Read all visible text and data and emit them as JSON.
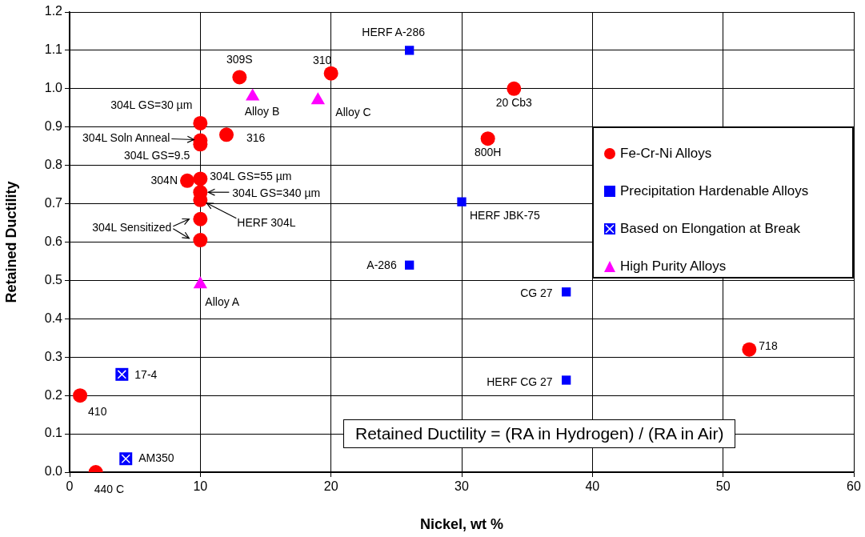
{
  "chart_data": {
    "type": "scatter",
    "xlabel": "Nickel, wt %",
    "ylabel": "Retained Ductility",
    "xlim": [
      0,
      60
    ],
    "xticks": [
      0,
      10,
      20,
      30,
      40,
      50,
      60
    ],
    "ylim": [
      0,
      1.2
    ],
    "yticks": [
      {
        "value": 0,
        "label": "0.0"
      },
      0.1,
      0.2,
      0.3,
      0.4,
      0.5,
      0.6,
      0.7,
      0.8,
      0.9,
      {
        "value": 1,
        "label": "1.0"
      },
      1.1,
      1.2
    ],
    "grid": true,
    "legend": "right",
    "series": [
      {
        "name": "Fe-Cr-Ni Alloys",
        "color": "#ff0000",
        "marker": "circle",
        "x": [
          0.8,
          2,
          13,
          20,
          10,
          10,
          10,
          12,
          9,
          10,
          10,
          10,
          10,
          10,
          34,
          32,
          52
        ],
        "values": [
          0.2,
          0.0,
          1.03,
          1.04,
          0.91,
          0.865,
          0.855,
          0.88,
          0.76,
          0.765,
          0.73,
          0.71,
          0.66,
          0.605,
          1.0,
          0.87,
          0.32
        ]
      },
      {
        "name": "Precipitation Hardenable Alloys",
        "color": "#0000ff",
        "marker": "square",
        "x": [
          26,
          30,
          26,
          38,
          38
        ],
        "values": [
          1.1,
          0.705,
          0.54,
          0.47,
          0.24
        ]
      },
      {
        "name": "Based on Elongation at Break",
        "color": "#0000ff",
        "marker": "square",
        "x": [
          4,
          4.3
        ],
        "values": [
          0.255,
          0.035
        ]
      },
      {
        "name": "High Purity Alloys",
        "color": "#ff00ff",
        "marker": "triangle",
        "x": [
          10,
          14,
          19
        ],
        "values": [
          0.49,
          0.98,
          0.97
        ]
      }
    ],
    "annotations": [
      {
        "text": "HERF A-286",
        "x": 26,
        "y": 1.1
      },
      {
        "text": "309S",
        "x": 13,
        "y": 1.03
      },
      {
        "text": "310",
        "x": 20,
        "y": 1.04
      },
      {
        "text": "Alloy B",
        "x": 14,
        "y": 0.98
      },
      {
        "text": "Alloy C",
        "x": 19,
        "y": 0.97
      },
      {
        "text": "304L GS=30 µm",
        "x": 10,
        "y": 0.91
      },
      {
        "text": "304L Soln Anneal",
        "x": 10,
        "y": 0.865
      },
      {
        "text": "304L GS=9.5",
        "x": 10,
        "y": 0.855
      },
      {
        "text": "316",
        "x": 12,
        "y": 0.88
      },
      {
        "text": "304N",
        "x": 9,
        "y": 0.76
      },
      {
        "text": "304L GS=55 µm",
        "x": 10,
        "y": 0.765
      },
      {
        "text": "304L GS=340 µm",
        "x": 10,
        "y": 0.73
      },
      {
        "text": "HERF 304L",
        "x": 10,
        "y": 0.71
      },
      {
        "text": "304L Sensitized",
        "x": 10,
        "y": 0.66
      },
      {
        "text": "A-286",
        "x": 26,
        "y": 0.54
      },
      {
        "text": "Alloy A",
        "x": 10,
        "y": 0.49
      },
      {
        "text": "17-4",
        "x": 4,
        "y": 0.255
      },
      {
        "text": "410",
        "x": 0.8,
        "y": 0.2
      },
      {
        "text": "AM350",
        "x": 4.3,
        "y": 0.035
      },
      {
        "text": "440 C",
        "x": 2,
        "y": 0.0
      },
      {
        "text": "20 Cb3",
        "x": 34,
        "y": 1.0
      },
      {
        "text": "800H",
        "x": 32,
        "y": 0.87
      },
      {
        "text": "718",
        "x": 52,
        "y": 0.32
      },
      {
        "text": "HERF JBK-75",
        "x": 30,
        "y": 0.705
      },
      {
        "text": "CG 27",
        "x": 38,
        "y": 0.47
      },
      {
        "text": "HERF CG 27",
        "x": 38,
        "y": 0.24
      },
      "Retained Ductility = (RA in Hydrogen) / (RA in Air)"
    ]
  }
}
